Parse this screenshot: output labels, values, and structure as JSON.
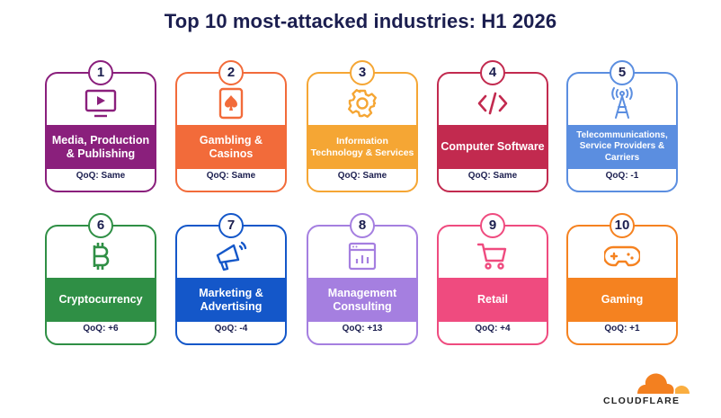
{
  "title": "Top 10 most-attacked industries: H1 2026",
  "cards": [
    {
      "rank": "1",
      "label": "Media, Production & Publishing",
      "qoq": "QoQ: Same",
      "color": "#8a1f7c",
      "icon": "tv-play-icon"
    },
    {
      "rank": "2",
      "label": "Gambling & Casinos",
      "qoq": "QoQ: Same",
      "color": "#f26b3a",
      "icon": "playing-card-spade-icon"
    },
    {
      "rank": "3",
      "label": "Information Technology & Services",
      "qoq": "QoQ: Same",
      "color": "#f5a634",
      "icon": "gear-icon"
    },
    {
      "rank": "4",
      "label": "Computer Software",
      "qoq": "QoQ: Same",
      "color": "#c22a4f",
      "icon": "code-brackets-icon"
    },
    {
      "rank": "5",
      "label": "Telecommunications, Service Providers & Carriers",
      "qoq": "QoQ: -1",
      "color": "#5b8ee0",
      "icon": "antenna-tower-icon"
    },
    {
      "rank": "6",
      "label": "Cryptocurrency",
      "qoq": "QoQ: +6",
      "color": "#2f8f45",
      "icon": "bitcoin-icon"
    },
    {
      "rank": "7",
      "label": "Marketing & Advertising",
      "qoq": "QoQ: -4",
      "color": "#1457c9",
      "icon": "megaphone-icon"
    },
    {
      "rank": "8",
      "label": "Management Consulting",
      "qoq": "QoQ: +13",
      "color": "#a57fe0",
      "icon": "browser-chart-icon"
    },
    {
      "rank": "9",
      "label": "Retail",
      "qoq": "QoQ: +4",
      "color": "#ef4b7f",
      "icon": "shopping-cart-icon"
    },
    {
      "rank": "10",
      "label": "Gaming",
      "qoq": "QoQ: +1",
      "color": "#f58220",
      "icon": "gamepad-icon"
    }
  ],
  "brand": {
    "name": "CLOUDFLARE",
    "cloud_color": "#f38020",
    "cloud_color_light": "#faae40"
  }
}
